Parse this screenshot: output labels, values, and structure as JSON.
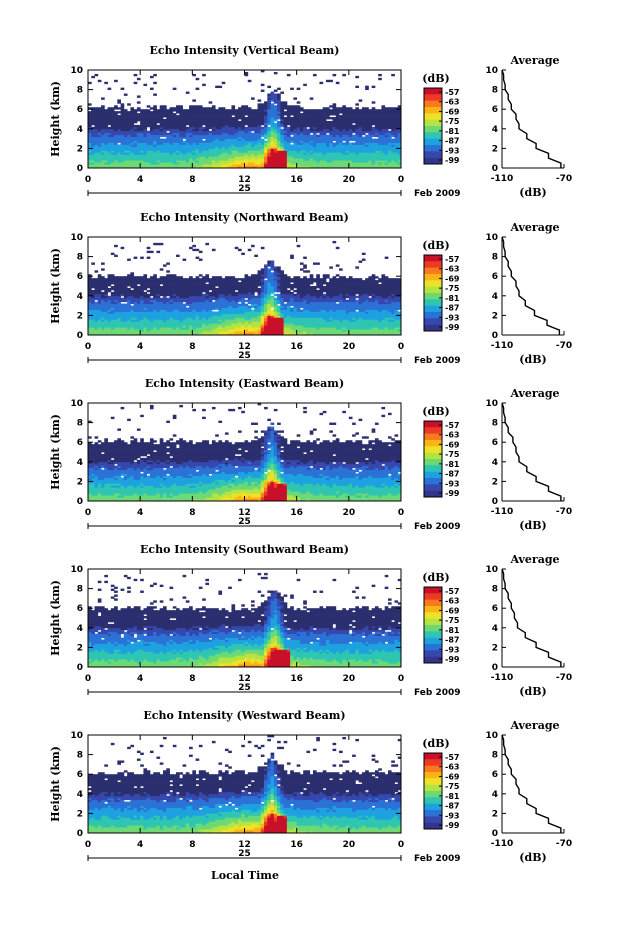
{
  "figure": {
    "xlabel": "Local Time",
    "colorbar_unit": "(dB)",
    "colorbar_ticks": [
      "-57",
      "-63",
      "-69",
      "-75",
      "-81",
      "-87",
      "-93",
      "-99"
    ],
    "colorbar_colors": [
      "#c8102a",
      "#ee3a24",
      "#f9791e",
      "#fbb416",
      "#ede12a",
      "#b5e442",
      "#6dd975",
      "#2ec6b2",
      "#1ea1e0",
      "#2b72d6",
      "#3648ae",
      "#33358a"
    ],
    "base_color": "#2b2f6e",
    "date_day": "25",
    "date_label": "Feb 2009",
    "profile_title": "Average",
    "profile_xlabel": "(dB)",
    "profile_xticks": [
      "-110",
      "-70"
    ]
  },
  "chart_data": [
    {
      "type": "heatmap",
      "title": "Echo Intensity (Vertical Beam)",
      "ylabel": "Height (km)",
      "x_ticks": [
        "0",
        "4",
        "8",
        "12",
        "16",
        "20",
        "0"
      ],
      "y_ticks": [
        "0",
        "2",
        "4",
        "6",
        "8",
        "10"
      ],
      "xlim": [
        0,
        24
      ],
      "ylim": [
        0,
        10
      ],
      "colorbar_range_db": [
        -99,
        -57
      ],
      "cloud_top_km": 6.2,
      "convective_core_hour": 14.2,
      "profile": {
        "title": "Average",
        "xlim": [
          -110,
          -70
        ],
        "y_km": [
          0,
          1,
          2,
          3,
          4,
          5,
          6,
          7,
          8,
          9,
          10
        ],
        "x_db": [
          -72,
          -80,
          -88,
          -94,
          -99,
          -101,
          -104,
          -106,
          -108,
          -109,
          -110
        ]
      }
    },
    {
      "type": "heatmap",
      "title": "Echo Intensity (Northward Beam)",
      "ylabel": "Height (km)",
      "x_ticks": [
        "0",
        "4",
        "8",
        "12",
        "16",
        "20",
        "0"
      ],
      "y_ticks": [
        "0",
        "2",
        "4",
        "6",
        "8",
        "10"
      ],
      "xlim": [
        0,
        24
      ],
      "ylim": [
        0,
        10
      ],
      "colorbar_range_db": [
        -99,
        -57
      ],
      "cloud_top_km": 6.0,
      "convective_core_hour": 14.0,
      "profile": {
        "title": "Average",
        "xlim": [
          -110,
          -70
        ],
        "y_km": [
          0,
          1,
          2,
          3,
          4,
          5,
          6,
          7,
          8,
          9,
          10
        ],
        "x_db": [
          -73,
          -81,
          -89,
          -95,
          -99,
          -101,
          -104,
          -106,
          -108,
          -109,
          -110
        ]
      }
    },
    {
      "type": "heatmap",
      "title": "Echo Intensity (Eastward Beam)",
      "ylabel": "Height (km)",
      "x_ticks": [
        "0",
        "4",
        "8",
        "12",
        "16",
        "20",
        "0"
      ],
      "y_ticks": [
        "0",
        "2",
        "4",
        "6",
        "8",
        "10"
      ],
      "xlim": [
        0,
        24
      ],
      "ylim": [
        0,
        10
      ],
      "colorbar_range_db": [
        -99,
        -57
      ],
      "cloud_top_km": 6.1,
      "convective_core_hour": 14.1,
      "profile": {
        "title": "Average",
        "xlim": [
          -110,
          -70
        ],
        "y_km": [
          0,
          1,
          2,
          3,
          4,
          5,
          6,
          7,
          8,
          9,
          10
        ],
        "x_db": [
          -72,
          -80,
          -88,
          -94,
          -99,
          -101,
          -103,
          -106,
          -108,
          -109,
          -110
        ]
      }
    },
    {
      "type": "heatmap",
      "title": "Echo Intensity (Southward Beam)",
      "ylabel": "Height (km)",
      "x_ticks": [
        "0",
        "4",
        "8",
        "12",
        "16",
        "20",
        "0"
      ],
      "y_ticks": [
        "0",
        "2",
        "4",
        "6",
        "8",
        "10"
      ],
      "xlim": [
        0,
        24
      ],
      "ylim": [
        0,
        10
      ],
      "colorbar_range_db": [
        -99,
        -57
      ],
      "cloud_top_km": 6.0,
      "convective_core_hour": 14.3,
      "profile": {
        "title": "Average",
        "xlim": [
          -110,
          -70
        ],
        "y_km": [
          0,
          1,
          2,
          3,
          4,
          5,
          6,
          7,
          8,
          9,
          10
        ],
        "x_db": [
          -72,
          -80,
          -88,
          -95,
          -100,
          -102,
          -104,
          -106,
          -108,
          -109,
          -110
        ]
      }
    },
    {
      "type": "heatmap",
      "title": "Echo Intensity (Westward Beam)",
      "ylabel": "Height (km)",
      "x_ticks": [
        "0",
        "4",
        "8",
        "12",
        "16",
        "20",
        "0"
      ],
      "y_ticks": [
        "0",
        "2",
        "4",
        "6",
        "8",
        "10"
      ],
      "xlim": [
        0,
        24
      ],
      "ylim": [
        0,
        10
      ],
      "colorbar_range_db": [
        -99,
        -57
      ],
      "cloud_top_km": 6.2,
      "convective_core_hour": 14.1,
      "profile": {
        "title": "Average",
        "xlim": [
          -110,
          -70
        ],
        "y_km": [
          0,
          1,
          2,
          3,
          4,
          5,
          6,
          7,
          8,
          9,
          10
        ],
        "x_db": [
          -72,
          -80,
          -88,
          -94,
          -99,
          -101,
          -104,
          -106,
          -108,
          -109,
          -110
        ]
      }
    }
  ]
}
